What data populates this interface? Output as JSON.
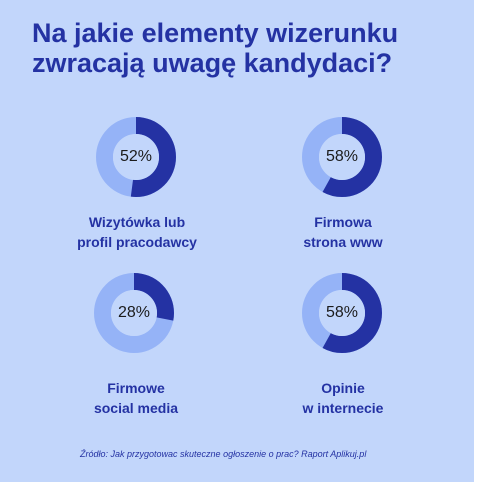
{
  "title_lines": [
    "Na jakie elementy wizerunku",
    "zwracają uwagę kandydaci?"
  ],
  "colors": {
    "background": "#c2d6fb",
    "filled": "#2432a3",
    "remaining": "#95b3f7",
    "center": "#c2d6fb",
    "text_dark": "#1b1b1b"
  },
  "chart_data": {
    "type": "pie",
    "items": [
      {
        "value": 52,
        "value_label": "52%",
        "label_lines": [
          "Wizytówka lub",
          "profil pracodawcy"
        ]
      },
      {
        "value": 58,
        "value_label": "58%",
        "label_lines": [
          "Firmowa",
          "strona www"
        ]
      },
      {
        "value": 28,
        "value_label": "28%",
        "label_lines": [
          "Firmowe",
          "social media"
        ]
      },
      {
        "value": 58,
        "value_label": "58%",
        "label_lines": [
          "Opinie",
          "w internecie"
        ]
      }
    ]
  },
  "source": "Źródło:  Jak przygotowac skuteczne ogłoszenie o prac? Raport Aplikuj.pl"
}
